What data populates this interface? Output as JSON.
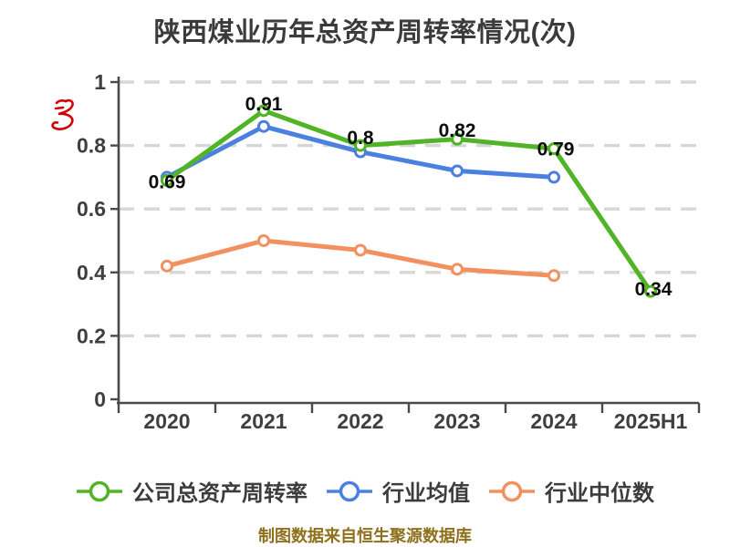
{
  "header": {
    "title": "陕西煤业历年总资产周转率情况(次)",
    "title_color": "#3b3b3b"
  },
  "watermark": {
    "description": "red-hand-drawn-scribble",
    "color": "#d40000"
  },
  "chart_data": {
    "type": "line",
    "title": "陕西煤业历年总资产周转率情况(次)",
    "categories": [
      "2020",
      "2021",
      "2022",
      "2023",
      "2024",
      "2025H1"
    ],
    "series": [
      {
        "name": "公司总资产周转率",
        "color": "#50b426",
        "values": [
          0.69,
          0.91,
          0.8,
          0.82,
          0.79,
          0.34
        ],
        "point_labels": [
          "0.69",
          "0.91",
          "0.8",
          "0.82",
          "0.79",
          "0.34"
        ]
      },
      {
        "name": "行业均值",
        "color": "#4b80e1",
        "values": [
          0.7,
          0.86,
          0.78,
          0.72,
          0.7,
          null
        ]
      },
      {
        "name": "行业中位数",
        "color": "#f2915f",
        "values": [
          0.42,
          0.5,
          0.47,
          0.41,
          0.39,
          null
        ]
      }
    ],
    "xlabel": "",
    "ylabel": "",
    "ylim": [
      0,
      1
    ],
    "yticks": [
      0,
      0.2,
      0.4,
      0.6,
      0.8,
      1
    ],
    "grid": "horizontal-dashed",
    "legend_position": "bottom",
    "marker": "circle-white-fill"
  },
  "axis": {
    "line_color": "#4a4a4a",
    "tick_label_color": "#3f3f3f",
    "grid_color": "#d7d7d7",
    "point_label_color": "#0b0b0b"
  },
  "legend": {
    "items": [
      {
        "label": "公司总资产周转率",
        "color": "#50b426"
      },
      {
        "label": "行业均值",
        "color": "#4b80e1"
      },
      {
        "label": "行业中位数",
        "color": "#f2915f"
      }
    ]
  },
  "footer": {
    "credit": "制图数据来自恒生聚源数据库",
    "color": "#8f701d"
  }
}
